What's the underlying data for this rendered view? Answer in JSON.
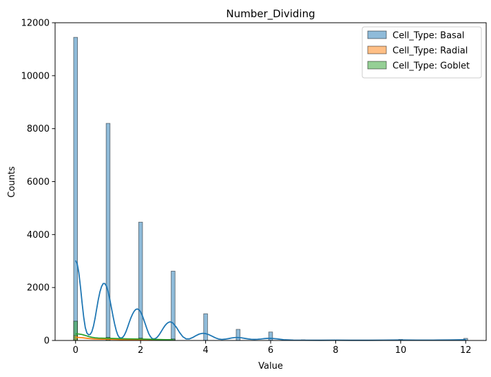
{
  "chart_data": {
    "type": "bar",
    "title": "Number_Dividing",
    "xlabel": "Value",
    "ylabel": "Counts",
    "xlim": [
      -0.63,
      12.63
    ],
    "ylim": [
      0,
      12000
    ],
    "xticks": [
      "0",
      "2",
      "4",
      "6",
      "8",
      "10",
      "12"
    ],
    "yticks": [
      "0",
      "2000",
      "4000",
      "6000",
      "8000",
      "10000",
      "12000"
    ],
    "grid": false,
    "legend_position": "top-right",
    "bin_width": 0.12,
    "series": [
      {
        "name": "Cell_Type: Basal",
        "color": "#1f77b4",
        "bins": [
          {
            "x": 0,
            "count": 11450
          },
          {
            "x": 1,
            "count": 8200
          },
          {
            "x": 2,
            "count": 4470
          },
          {
            "x": 3,
            "count": 2620
          },
          {
            "x": 4,
            "count": 1010
          },
          {
            "x": 5,
            "count": 420
          },
          {
            "x": 6,
            "count": 320
          },
          {
            "x": 7,
            "count": 25
          },
          {
            "x": 8,
            "count": 15
          },
          {
            "x": 10,
            "count": 40
          },
          {
            "x": 12,
            "count": 80
          }
        ],
        "kde": [
          [
            0.0,
            3020
          ],
          [
            0.05,
            2900
          ],
          [
            0.1,
            2560
          ],
          [
            0.15,
            2030
          ],
          [
            0.2,
            1430
          ],
          [
            0.25,
            880
          ],
          [
            0.3,
            480
          ],
          [
            0.35,
            280
          ],
          [
            0.4,
            215
          ],
          [
            0.45,
            230
          ],
          [
            0.5,
            330
          ],
          [
            0.55,
            540
          ],
          [
            0.6,
            840
          ],
          [
            0.65,
            1200
          ],
          [
            0.7,
            1550
          ],
          [
            0.75,
            1840
          ],
          [
            0.8,
            2040
          ],
          [
            0.85,
            2150
          ],
          [
            0.9,
            2150
          ],
          [
            0.95,
            2050
          ],
          [
            1.0,
            1850
          ],
          [
            1.05,
            1570
          ],
          [
            1.1,
            1250
          ],
          [
            1.15,
            930
          ],
          [
            1.2,
            630
          ],
          [
            1.25,
            380
          ],
          [
            1.3,
            200
          ],
          [
            1.35,
            110
          ],
          [
            1.4,
            90
          ],
          [
            1.45,
            120
          ],
          [
            1.5,
            200
          ],
          [
            1.55,
            330
          ],
          [
            1.6,
            500
          ],
          [
            1.65,
            680
          ],
          [
            1.7,
            850
          ],
          [
            1.75,
            990
          ],
          [
            1.8,
            1100
          ],
          [
            1.85,
            1170
          ],
          [
            1.9,
            1190
          ],
          [
            1.95,
            1160
          ],
          [
            2.0,
            1080
          ],
          [
            2.05,
            950
          ],
          [
            2.1,
            780
          ],
          [
            2.15,
            600
          ],
          [
            2.2,
            420
          ],
          [
            2.25,
            260
          ],
          [
            2.3,
            150
          ],
          [
            2.35,
            80
          ],
          [
            2.4,
            60
          ],
          [
            2.45,
            70
          ],
          [
            2.5,
            110
          ],
          [
            2.55,
            180
          ],
          [
            2.6,
            270
          ],
          [
            2.65,
            370
          ],
          [
            2.7,
            470
          ],
          [
            2.75,
            560
          ],
          [
            2.8,
            630
          ],
          [
            2.85,
            680
          ],
          [
            2.9,
            700
          ],
          [
            2.95,
            690
          ],
          [
            3.0,
            650
          ],
          [
            3.1,
            500
          ],
          [
            3.2,
            300
          ],
          [
            3.3,
            140
          ],
          [
            3.4,
            60
          ],
          [
            3.5,
            60
          ],
          [
            3.6,
            110
          ],
          [
            3.7,
            180
          ],
          [
            3.8,
            240
          ],
          [
            3.9,
            270
          ],
          [
            4.0,
            260
          ],
          [
            4.1,
            220
          ],
          [
            4.2,
            160
          ],
          [
            4.3,
            100
          ],
          [
            4.4,
            55
          ],
          [
            4.5,
            40
          ],
          [
            4.6,
            50
          ],
          [
            4.7,
            70
          ],
          [
            4.8,
            95
          ],
          [
            4.9,
            110
          ],
          [
            5.0,
            110
          ],
          [
            5.1,
            100
          ],
          [
            5.2,
            80
          ],
          [
            5.3,
            60
          ],
          [
            5.4,
            45
          ],
          [
            5.5,
            40
          ],
          [
            5.6,
            45
          ],
          [
            5.7,
            55
          ],
          [
            5.8,
            70
          ],
          [
            5.9,
            80
          ],
          [
            6.0,
            82
          ],
          [
            6.2,
            60
          ],
          [
            6.4,
            30
          ],
          [
            6.7,
            12
          ],
          [
            7.0,
            10
          ],
          [
            7.5,
            8
          ],
          [
            8.0,
            12
          ],
          [
            8.5,
            8
          ],
          [
            9.0,
            8
          ],
          [
            9.5,
            12
          ],
          [
            10.0,
            18
          ],
          [
            10.5,
            12
          ],
          [
            11.0,
            12
          ],
          [
            11.5,
            20
          ],
          [
            12.0,
            28
          ]
        ]
      },
      {
        "name": "Cell_Type: Radial",
        "color": "#ff7f0e",
        "bins": [
          {
            "x": 0,
            "count": 190
          },
          {
            "x": 1,
            "count": 65
          },
          {
            "x": 2,
            "count": 40
          },
          {
            "x": 3,
            "count": 20
          }
        ],
        "kde": [
          [
            0.0,
            120
          ],
          [
            0.2,
            105
          ],
          [
            0.4,
            75
          ],
          [
            0.6,
            55
          ],
          [
            0.8,
            50
          ],
          [
            1.0,
            48
          ],
          [
            1.2,
            42
          ],
          [
            1.4,
            35
          ],
          [
            1.6,
            30
          ],
          [
            1.8,
            28
          ],
          [
            2.0,
            26
          ],
          [
            2.2,
            22
          ],
          [
            2.4,
            18
          ],
          [
            2.6,
            15
          ],
          [
            2.8,
            12
          ],
          [
            3.0,
            10
          ]
        ]
      },
      {
        "name": "Cell_Type: Goblet",
        "color": "#2ca02c",
        "bins": [
          {
            "x": 0,
            "count": 730
          },
          {
            "x": 1,
            "count": 120
          },
          {
            "x": 2,
            "count": 90
          },
          {
            "x": 3,
            "count": 60
          }
        ],
        "kde": [
          [
            0.0,
            250
          ],
          [
            0.1,
            245
          ],
          [
            0.2,
            225
          ],
          [
            0.3,
            190
          ],
          [
            0.4,
            150
          ],
          [
            0.5,
            120
          ],
          [
            0.6,
            100
          ],
          [
            0.7,
            92
          ],
          [
            0.8,
            88
          ],
          [
            0.9,
            85
          ],
          [
            1.0,
            82
          ],
          [
            1.2,
            75
          ],
          [
            1.4,
            68
          ],
          [
            1.6,
            62
          ],
          [
            1.8,
            58
          ],
          [
            2.0,
            55
          ],
          [
            2.2,
            48
          ],
          [
            2.4,
            40
          ],
          [
            2.6,
            35
          ],
          [
            2.8,
            30
          ],
          [
            3.0,
            28
          ]
        ]
      }
    ]
  }
}
